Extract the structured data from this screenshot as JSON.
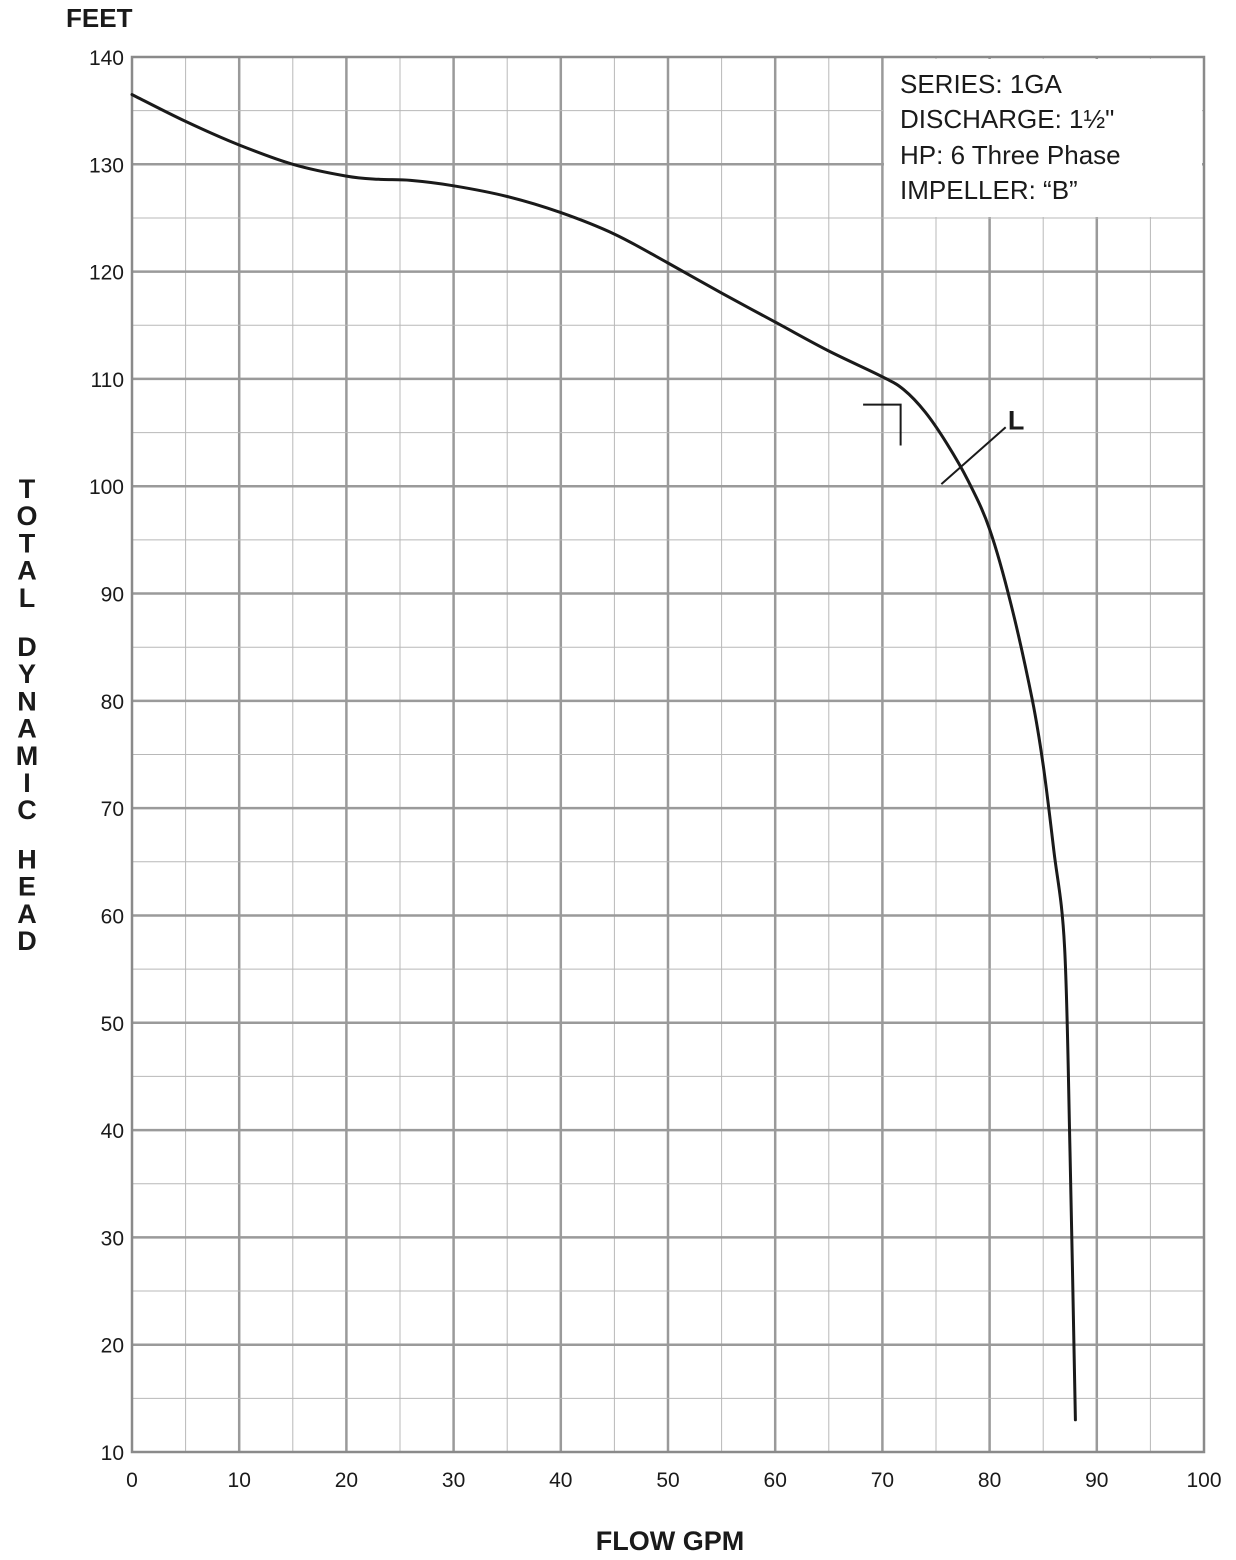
{
  "chart_data": {
    "type": "line",
    "title": "",
    "y_unit_label": "FEET",
    "ylabel": "TOTAL DYNAMIC HEAD",
    "xlabel": "FLOW GPM",
    "xlim": [
      0,
      100
    ],
    "ylim": [
      10,
      140
    ],
    "x_ticks": [
      "0",
      "10",
      "20",
      "30",
      "40",
      "50",
      "60",
      "70",
      "80",
      "90",
      "100"
    ],
    "y_ticks": [
      "10",
      "20",
      "30",
      "40",
      "50",
      "60",
      "70",
      "80",
      "90",
      "100",
      "110",
      "120",
      "130",
      "140"
    ],
    "grid": true,
    "info_box": [
      "SERIES: 1GA",
      "DISCHARGE: 1½\"",
      "HP: 6 Three Phase",
      "IMPELLER: “B”"
    ],
    "series": [
      {
        "label": "L",
        "x": [
          0,
          5,
          10,
          15,
          20,
          23,
          26,
          30,
          35,
          40,
          45,
          50,
          55,
          60,
          65,
          70,
          72,
          74,
          76,
          78,
          80,
          82,
          84,
          85,
          86,
          87,
          87.5,
          88
        ],
        "y": [
          136.5,
          134,
          131.8,
          130,
          128.9,
          128.6,
          128.5,
          128,
          127,
          125.5,
          123.5,
          120.8,
          118,
          115.3,
          112.6,
          110.2,
          109,
          106.9,
          104,
          100.5,
          96,
          89,
          80,
          74,
          66,
          57,
          38,
          13
        ]
      }
    ],
    "annotations": {
      "series_label": "L",
      "corner_marker_at": [
        72,
        109
      ]
    }
  }
}
